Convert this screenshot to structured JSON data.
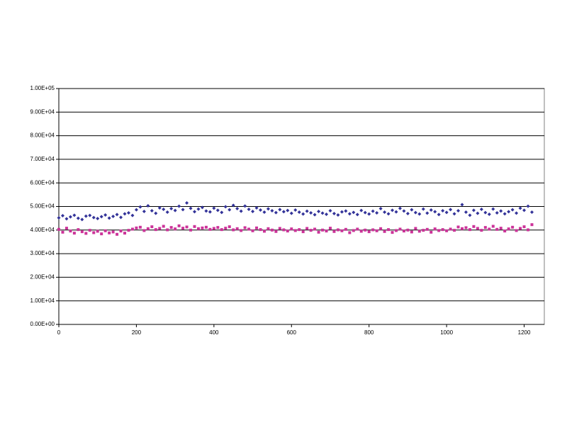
{
  "chart_data": {
    "type": "scatter",
    "x": [
      0,
      10,
      20,
      30,
      40,
      50,
      60,
      70,
      80,
      90,
      100,
      110,
      120,
      130,
      140,
      150,
      160,
      170,
      180,
      190,
      200,
      210,
      220,
      230,
      240,
      250,
      260,
      270,
      280,
      290,
      300,
      310,
      320,
      330,
      340,
      350,
      360,
      370,
      380,
      390,
      400,
      410,
      420,
      430,
      440,
      450,
      460,
      470,
      480,
      490,
      500,
      510,
      520,
      530,
      540,
      550,
      560,
      570,
      580,
      590,
      600,
      610,
      620,
      630,
      640,
      650,
      660,
      670,
      680,
      690,
      700,
      710,
      720,
      730,
      740,
      750,
      760,
      770,
      780,
      790,
      800,
      810,
      820,
      830,
      840,
      850,
      860,
      870,
      880,
      890,
      900,
      910,
      920,
      930,
      940,
      950,
      960,
      970,
      980,
      990,
      1000,
      1010,
      1020,
      1030,
      1040,
      1050,
      1060,
      1070,
      1080,
      1090,
      1100,
      1110,
      1120,
      1130,
      1140,
      1150,
      1160,
      1170,
      1180,
      1190,
      1200,
      1210,
      1220
    ],
    "series": [
      {
        "color": "#333399",
        "marker": "diamond",
        "values": [
          45200,
          46100,
          44800,
          45600,
          46300,
          45000,
          44500,
          45900,
          46200,
          45300,
          44900,
          45700,
          46400,
          45100,
          45800,
          46600,
          45400,
          46900,
          47300,
          46200,
          48600,
          49800,
          47900,
          50300,
          48200,
          47100,
          49400,
          48800,
          47600,
          49100,
          48300,
          50100,
          48700,
          51500,
          49200,
          47800,
          48900,
          49600,
          48100,
          47700,
          49300,
          48400,
          47500,
          49900,
          48600,
          50500,
          49100,
          48000,
          50200,
          48800,
          47900,
          49400,
          48500,
          47600,
          49000,
          48200,
          47400,
          48700,
          47800,
          48300,
          47100,
          48500,
          47600,
          46800,
          48000,
          47300,
          46500,
          47900,
          47200,
          46700,
          48200,
          47000,
          46400,
          47700,
          48100,
          46900,
          47500,
          46600,
          48300,
          47400,
          46800,
          48000,
          47300,
          49100,
          47600,
          46900,
          48400,
          47700,
          49200,
          48100,
          47000,
          48600,
          47400,
          46800,
          48900,
          47200,
          48500,
          47800,
          46600,
          48200,
          47500,
          48700,
          46900,
          48200,
          50800,
          47600,
          46300,
          48400,
          47100,
          48800,
          47400,
          46700,
          48900,
          47300,
          48100,
          46900,
          47800,
          48600,
          47200,
          49300,
          48400,
          50100,
          47600
        ]
      },
      {
        "color": "#cc3399",
        "marker": "square",
        "values": [
          40300,
          39100,
          40800,
          39600,
          38700,
          40200,
          39300,
          38600,
          39900,
          38900,
          39500,
          38400,
          39700,
          38800,
          39200,
          38200,
          39600,
          38700,
          39900,
          40400,
          40900,
          41200,
          39800,
          40600,
          41400,
          40200,
          40700,
          41600,
          40100,
          41100,
          40500,
          41800,
          40800,
          41300,
          40000,
          41500,
          40600,
          40900,
          41200,
          40300,
          40700,
          41100,
          40200,
          40800,
          41400,
          40100,
          40600,
          39800,
          41000,
          40400,
          39700,
          40900,
          40200,
          39500,
          40600,
          40000,
          39400,
          40700,
          40100,
          39600,
          40500,
          39800,
          40200,
          39300,
          40700,
          39900,
          40400,
          39100,
          40000,
          39600,
          40800,
          39400,
          40100,
          39700,
          40300,
          38900,
          39800,
          40400,
          39500,
          40000,
          39300,
          40100,
          39700,
          40600,
          39400,
          40200,
          39000,
          39800,
          40400,
          39600,
          40000,
          39200,
          40700,
          39500,
          39900,
          40300,
          39100,
          40500,
          39800,
          40200,
          39700,
          40400,
          39900,
          41300,
          40600,
          41000,
          40200,
          41500,
          40700,
          39900,
          41100,
          40400,
          41600,
          40300,
          40800,
          39600,
          40500,
          41200,
          39800,
          40700,
          41400,
          40100,
          42300
        ]
      }
    ],
    "xlim": [
      0,
      1252
    ],
    "xticks": [
      0,
      200,
      400,
      600,
      800,
      1000,
      1200
    ],
    "ylim": [
      0,
      100000
    ],
    "yticks": [
      {
        "value": 0,
        "label": "0.00E+00"
      },
      {
        "value": 10000,
        "label": "1.00E+04"
      },
      {
        "value": 20000,
        "label": "2.00E+04"
      },
      {
        "value": 30000,
        "label": "3.00E+04"
      },
      {
        "value": 40000,
        "label": "4.00E+04"
      },
      {
        "value": 50000,
        "label": "5.00E+04"
      },
      {
        "value": 60000,
        "label": "6.00E+04"
      },
      {
        "value": 70000,
        "label": "7.00E+04"
      },
      {
        "value": 80000,
        "label": "8.00E+04"
      },
      {
        "value": 90000,
        "label": "9.00E+04"
      },
      {
        "value": 100000,
        "label": "1.00E+05"
      }
    ],
    "grid": true
  }
}
